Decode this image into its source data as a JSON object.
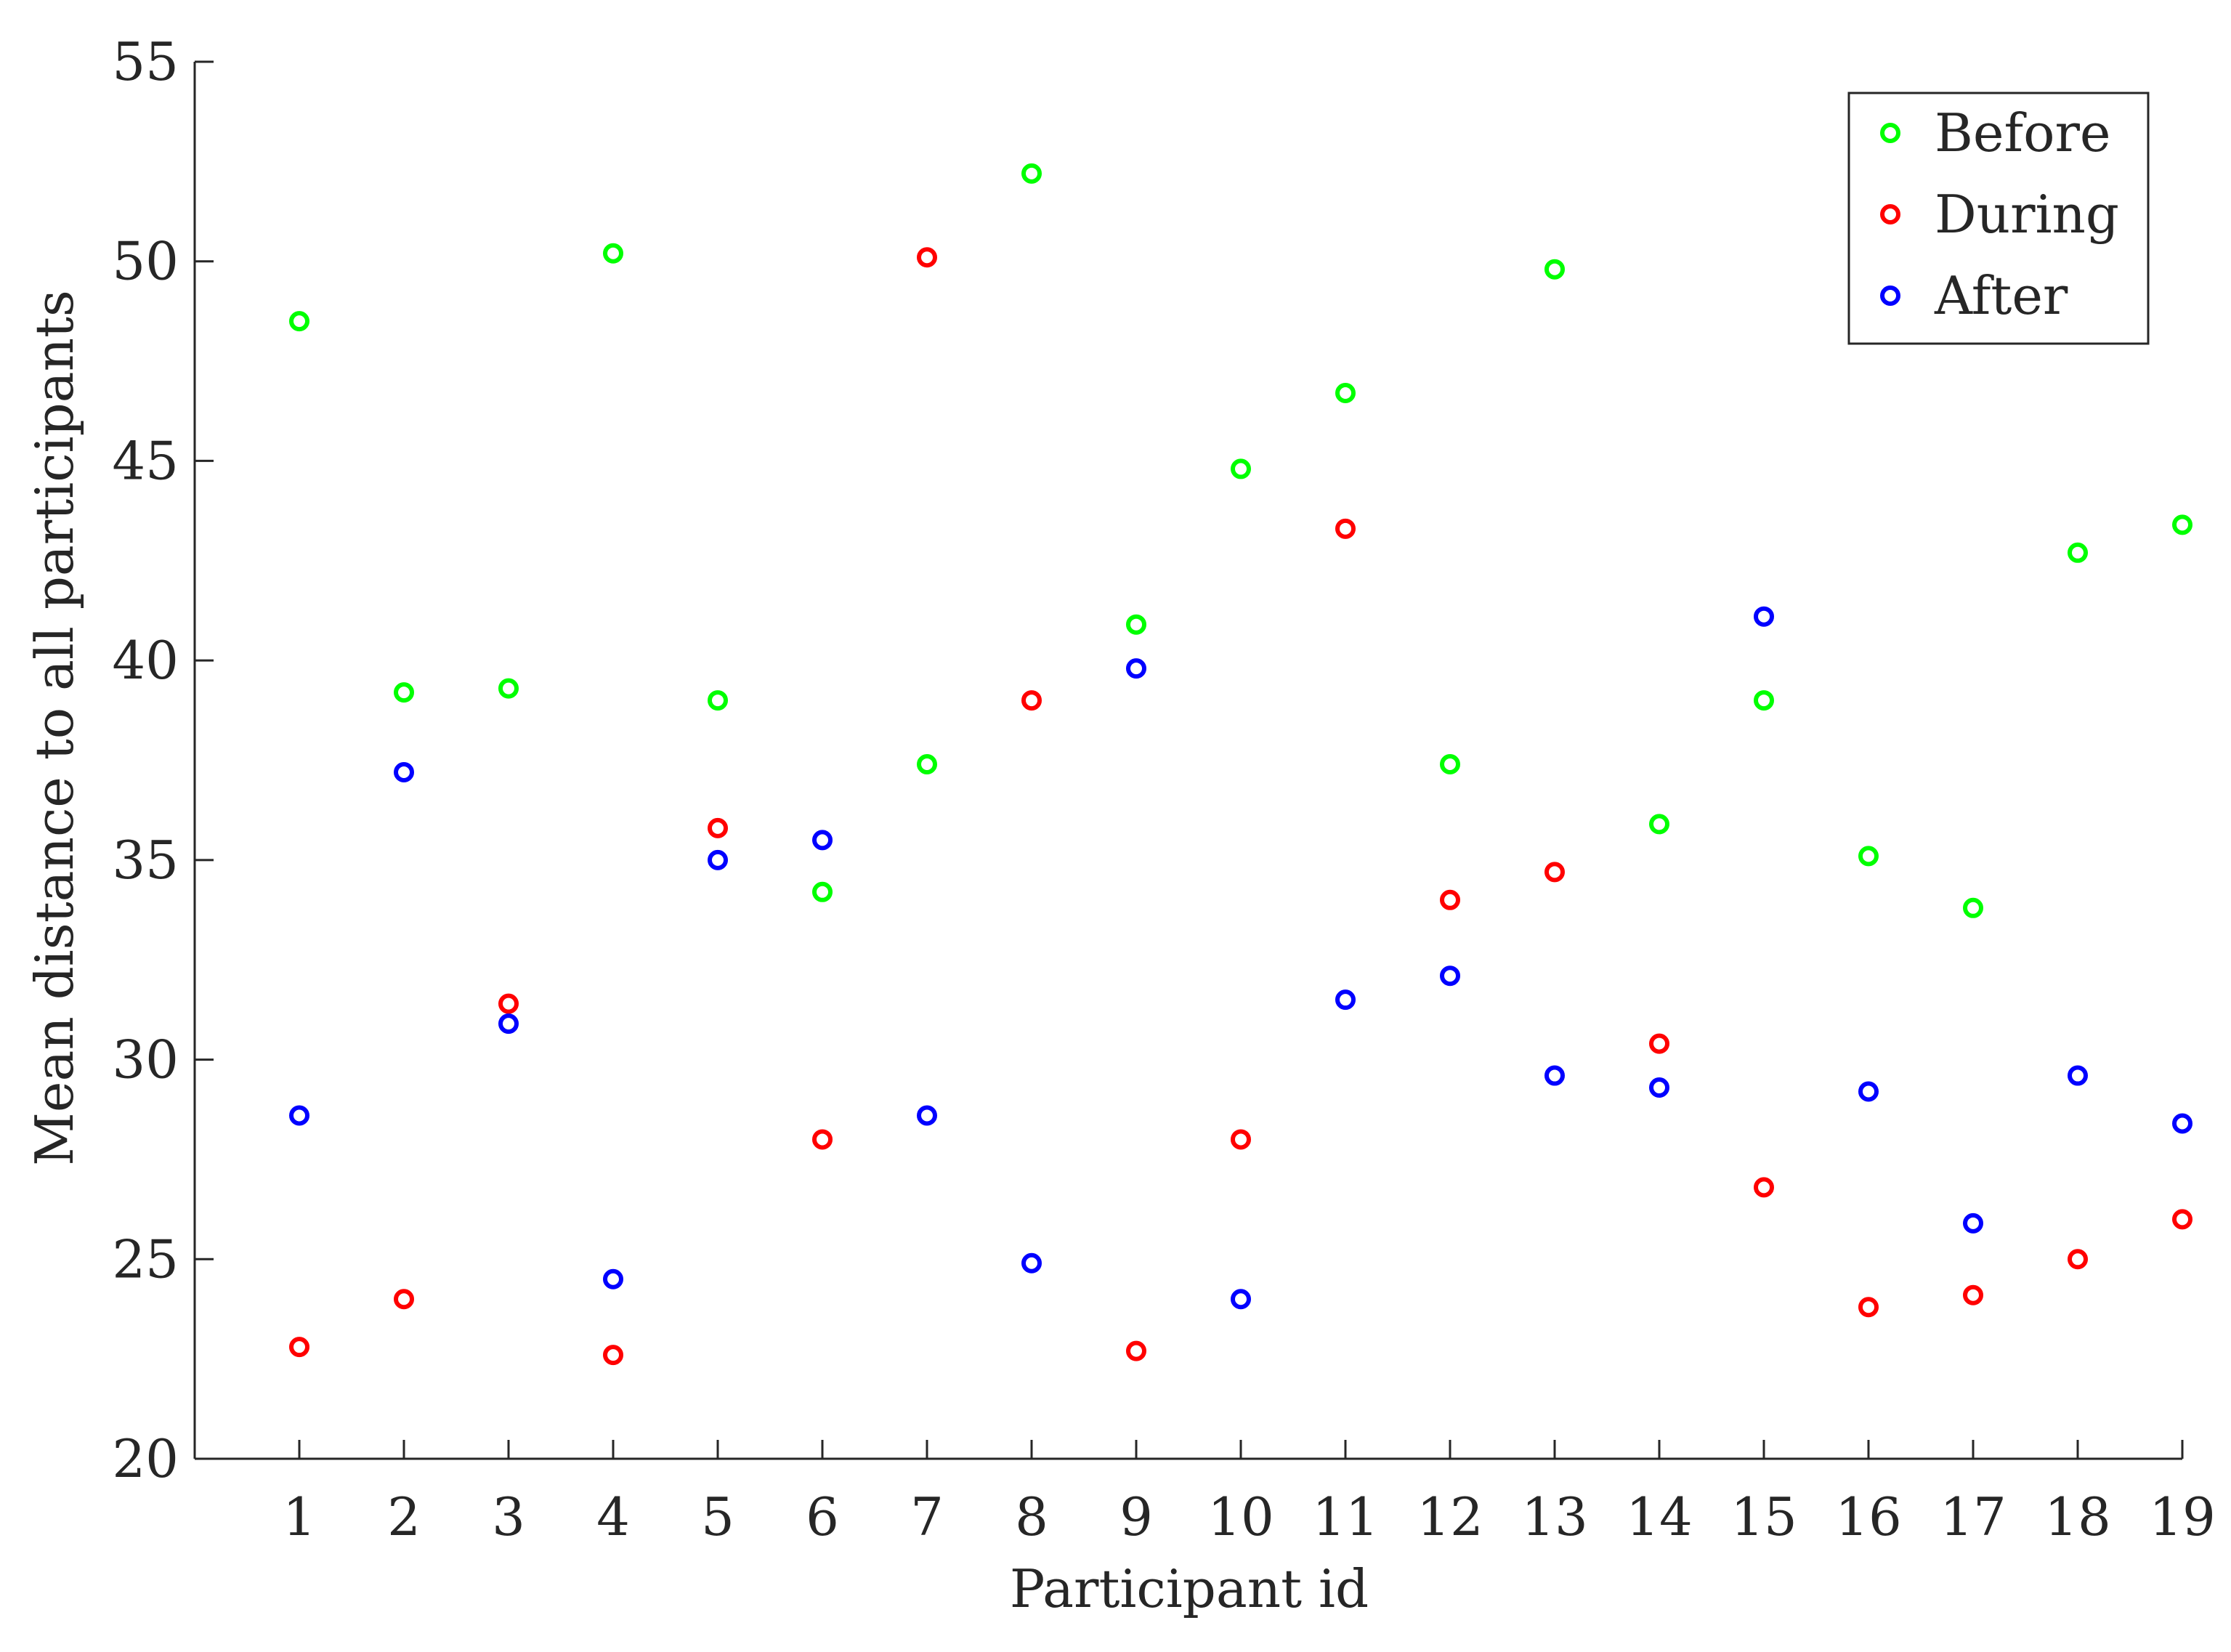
{
  "chart_data": {
    "type": "scatter",
    "title": "",
    "xlabel": "Participant id",
    "ylabel": "Mean distance to all participants",
    "x": [
      1,
      2,
      3,
      4,
      5,
      6,
      7,
      8,
      9,
      10,
      11,
      12,
      13,
      14,
      15,
      16,
      17,
      18,
      19
    ],
    "xticks": [
      "1",
      "2",
      "3",
      "4",
      "5",
      "6",
      "7",
      "8",
      "9",
      "10",
      "11",
      "12",
      "13",
      "14",
      "15",
      "16",
      "17",
      "18",
      "19"
    ],
    "yticks": [
      "20",
      "25",
      "30",
      "35",
      "40",
      "45",
      "50",
      "55"
    ],
    "xlim": [
      0,
      19
    ],
    "ylim": [
      20,
      55
    ],
    "grid": false,
    "legend_position": "top-right",
    "series": [
      {
        "name": "Before",
        "color": "#00ff00",
        "values": [
          48.5,
          39.2,
          39.3,
          50.2,
          39.0,
          34.2,
          37.4,
          52.2,
          40.9,
          44.8,
          46.7,
          37.4,
          49.8,
          35.9,
          39.0,
          35.1,
          33.8,
          42.7,
          43.4
        ]
      },
      {
        "name": "During",
        "color": "#ff0000",
        "values": [
          22.8,
          24.0,
          31.4,
          22.6,
          35.8,
          28.0,
          50.1,
          39.0,
          22.7,
          28.0,
          43.3,
          34.0,
          34.7,
          30.4,
          26.8,
          23.8,
          24.1,
          25.0,
          26.0
        ]
      },
      {
        "name": "After",
        "color": "#0000ff",
        "values": [
          28.6,
          37.2,
          30.9,
          24.5,
          35.0,
          35.5,
          28.6,
          24.9,
          39.8,
          24.0,
          31.5,
          32.1,
          29.6,
          29.3,
          41.1,
          29.2,
          25.9,
          29.6,
          28.4
        ]
      }
    ]
  }
}
